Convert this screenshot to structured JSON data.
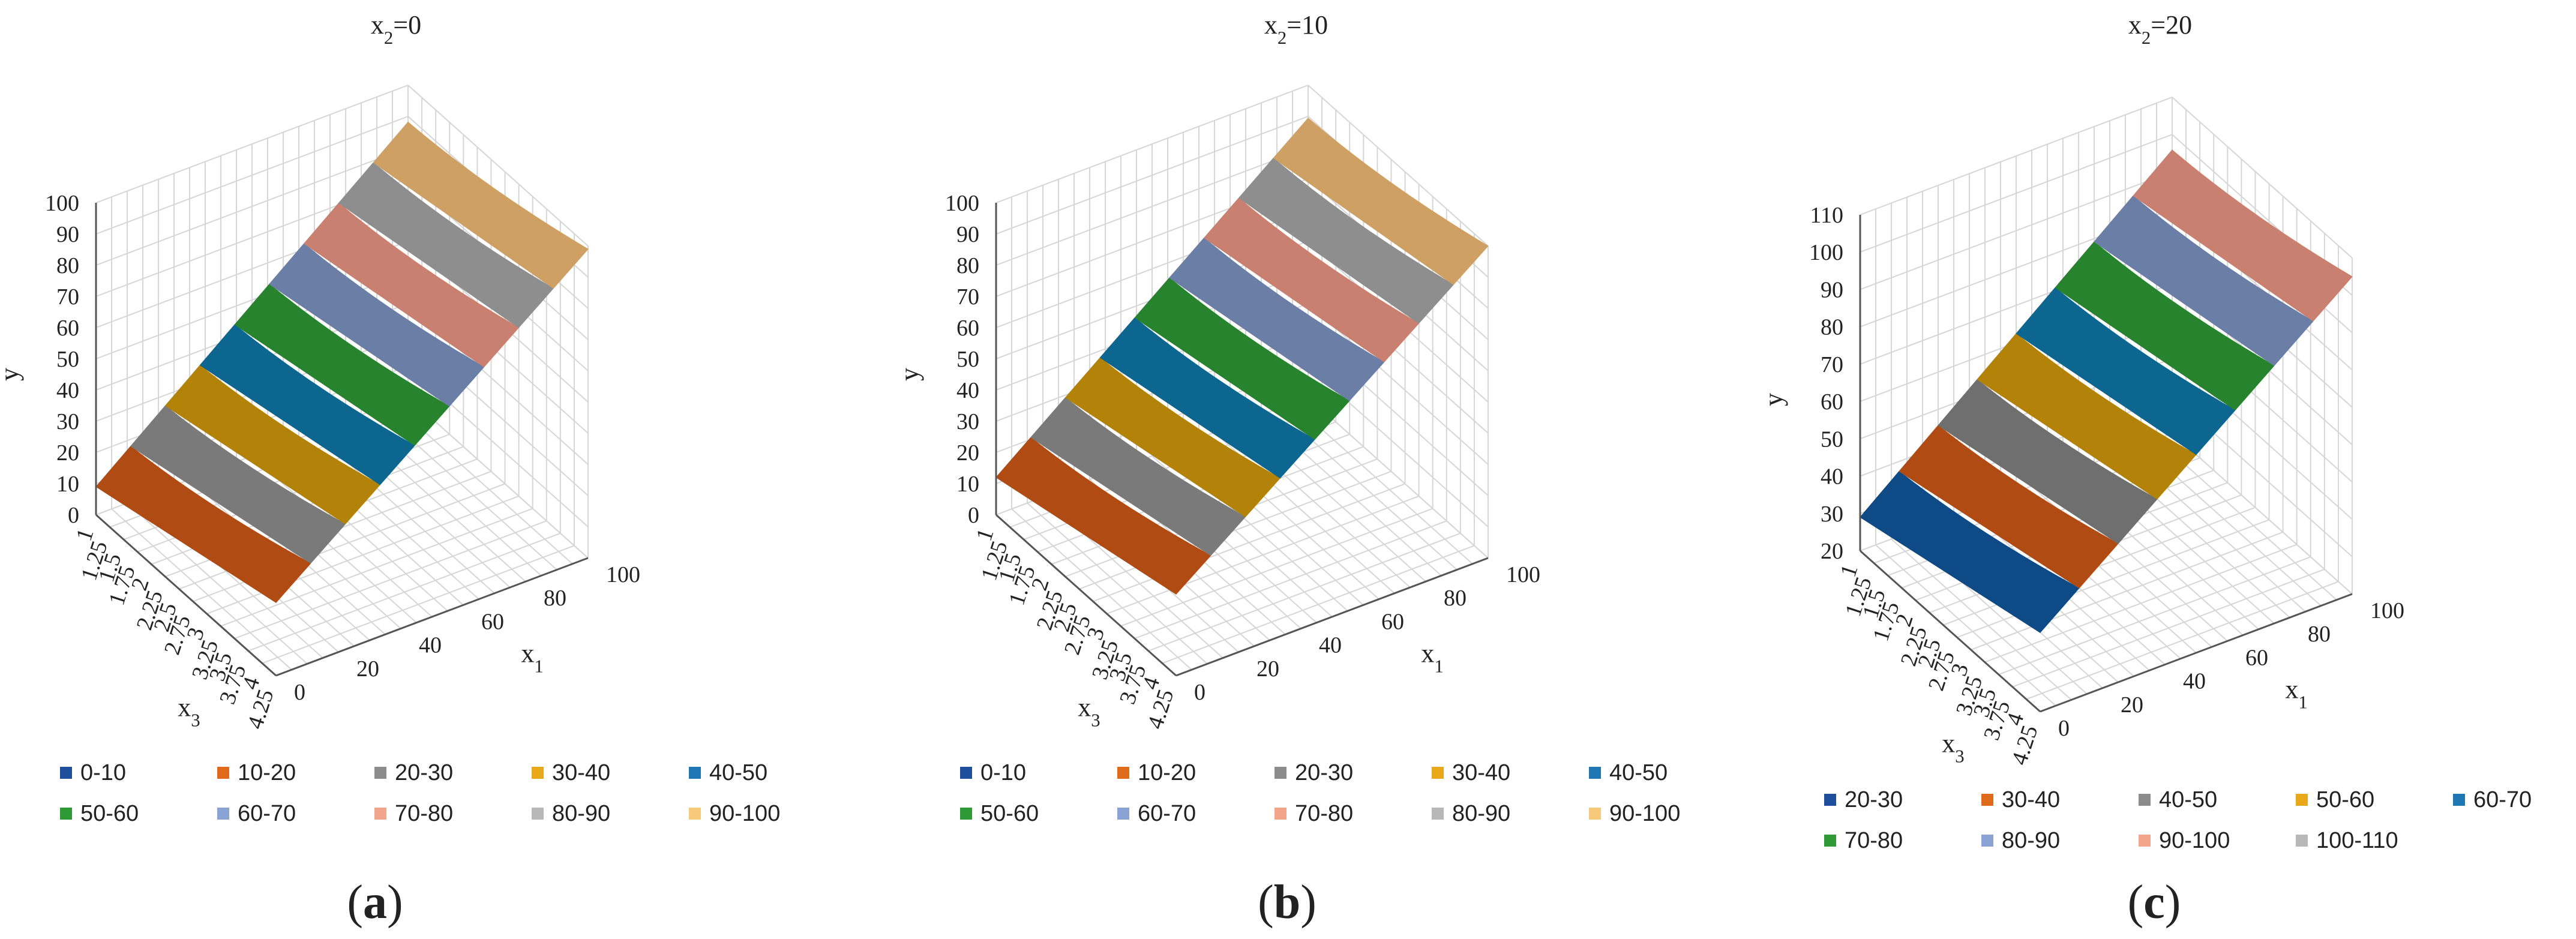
{
  "figure": {
    "letters": [
      "(a)",
      "(b)",
      "(c)"
    ]
  },
  "chart_data": [
    {
      "type": "surface",
      "title": "x2=0",
      "axes": {
        "x1": {
          "label": "x1",
          "ticks": [
            "0",
            "20",
            "40",
            "60",
            "80",
            "100"
          ],
          "range": [
            0,
            100
          ]
        },
        "x3": {
          "label": "x3",
          "ticks": [
            "1",
            "1.25",
            "1.5",
            "1.75",
            "2",
            "2.25",
            "2.5",
            "2.75",
            "3",
            "3.25",
            "3.5",
            "3.75",
            "4",
            "4.25"
          ],
          "range": [
            1,
            4.25
          ]
        },
        "y": {
          "label": "y",
          "ticks": [
            "0",
            "10",
            "20",
            "30",
            "40",
            "50",
            "60",
            "70",
            "80",
            "90",
            "100"
          ],
          "range": [
            0,
            100
          ]
        }
      },
      "legend": {
        "placement": "bottom",
        "items": [
          {
            "label": "0-10",
            "color": "#1f4e9c"
          },
          {
            "label": "10-20",
            "color": "#e06a1b"
          },
          {
            "label": "20-30",
            "color": "#8c8c8c"
          },
          {
            "label": "30-40",
            "color": "#e8a81a"
          },
          {
            "label": "40-50",
            "color": "#1f78b4"
          },
          {
            "label": "50-60",
            "color": "#2e9a35"
          },
          {
            "label": "60-70",
            "color": "#8aa3d4"
          },
          {
            "label": "70-80",
            "color": "#f2a58a"
          },
          {
            "label": "80-90",
            "color": "#b8b8b8"
          },
          {
            "label": "90-100",
            "color": "#f7c97a"
          }
        ]
      },
      "surface": {
        "y_at_x1_0_x3_min": 9,
        "y_at_x1_100_x3_max": 99,
        "bands": [
          {
            "range": "10-20",
            "color": "#b14b14"
          },
          {
            "range": "20-30",
            "color": "#7a7a7a"
          },
          {
            "range": "30-40",
            "color": "#b38208"
          },
          {
            "range": "40-50",
            "color": "#0d6690"
          },
          {
            "range": "50-60",
            "color": "#27832d"
          },
          {
            "range": "60-70",
            "color": "#6b7ea6"
          },
          {
            "range": "70-80",
            "color": "#c98070"
          },
          {
            "range": "80-90",
            "color": "#8e8e8e"
          },
          {
            "range": "90-100",
            "color": "#cfa064"
          }
        ]
      }
    },
    {
      "type": "surface",
      "title": "x2=10",
      "axes": {
        "x1": {
          "label": "x1",
          "ticks": [
            "0",
            "20",
            "40",
            "60",
            "80",
            "100"
          ],
          "range": [
            0,
            100
          ]
        },
        "x3": {
          "label": "x3",
          "ticks": [
            "1",
            "1.25",
            "1.5",
            "1.75",
            "2",
            "2.25",
            "2.5",
            "2.75",
            "3",
            "3.25",
            "3.5",
            "3.75",
            "4",
            "4.25"
          ],
          "range": [
            1,
            4.25
          ]
        },
        "y": {
          "label": "y",
          "ticks": [
            "0",
            "10",
            "20",
            "30",
            "40",
            "50",
            "60",
            "70",
            "80",
            "90",
            "100"
          ],
          "range": [
            0,
            100
          ]
        }
      },
      "legend": {
        "placement": "bottom",
        "items": [
          {
            "label": "0-10",
            "color": "#1f4e9c"
          },
          {
            "label": "10-20",
            "color": "#e06a1b"
          },
          {
            "label": "20-30",
            "color": "#8c8c8c"
          },
          {
            "label": "30-40",
            "color": "#e8a81a"
          },
          {
            "label": "40-50",
            "color": "#1f78b4"
          },
          {
            "label": "50-60",
            "color": "#2e9a35"
          },
          {
            "label": "60-70",
            "color": "#8aa3d4"
          },
          {
            "label": "70-80",
            "color": "#f2a58a"
          },
          {
            "label": "80-90",
            "color": "#b8b8b8"
          },
          {
            "label": "90-100",
            "color": "#f7c97a"
          }
        ]
      },
      "surface": {
        "y_at_x1_0_x3_min": 12,
        "y_at_x1_100_x3_max": 100,
        "bands": [
          {
            "range": "10-20",
            "color": "#b14b14"
          },
          {
            "range": "20-30",
            "color": "#7a7a7a"
          },
          {
            "range": "30-40",
            "color": "#b38208"
          },
          {
            "range": "40-50",
            "color": "#0d6690"
          },
          {
            "range": "50-60",
            "color": "#27832d"
          },
          {
            "range": "60-70",
            "color": "#6b7ea6"
          },
          {
            "range": "70-80",
            "color": "#c98070"
          },
          {
            "range": "80-90",
            "color": "#8e8e8e"
          },
          {
            "range": "90-100",
            "color": "#cfa064"
          }
        ]
      }
    },
    {
      "type": "surface",
      "title": "x2=20",
      "axes": {
        "x1": {
          "label": "x1",
          "ticks": [
            "0",
            "20",
            "40",
            "60",
            "80",
            "100"
          ],
          "range": [
            0,
            100
          ]
        },
        "x3": {
          "label": "x3",
          "ticks": [
            "1",
            "1.25",
            "1.5",
            "1.75",
            "2",
            "2.25",
            "2.5",
            "2.75",
            "3",
            "3.25",
            "3.5",
            "3.75",
            "4",
            "4.25"
          ],
          "range": [
            1,
            4.25
          ]
        },
        "y": {
          "label": "y",
          "ticks": [
            "20",
            "30",
            "40",
            "50",
            "60",
            "70",
            "80",
            "90",
            "100",
            "110"
          ],
          "range": [
            20,
            110
          ]
        }
      },
      "legend": {
        "placement": "bottom",
        "items": [
          {
            "label": "20-30",
            "color": "#1f4e9c"
          },
          {
            "label": "30-40",
            "color": "#e06a1b"
          },
          {
            "label": "40-50",
            "color": "#8c8c8c"
          },
          {
            "label": "50-60",
            "color": "#e8a81a"
          },
          {
            "label": "60-70",
            "color": "#1f78b4"
          },
          {
            "label": "70-80",
            "color": "#2e9a35"
          },
          {
            "label": "80-90",
            "color": "#8aa3d4"
          },
          {
            "label": "90-100",
            "color": "#f2a58a"
          },
          {
            "label": "100-110",
            "color": "#b8b8b8"
          }
        ]
      },
      "surface": {
        "y_at_x1_0_x3_min": 29,
        "y_at_x1_100_x3_max": 105,
        "bands": [
          {
            "range": "20-30",
            "color": "#0d4a86"
          },
          {
            "range": "30-40",
            "color": "#b14b14"
          },
          {
            "range": "40-50",
            "color": "#6f6f6f"
          },
          {
            "range": "50-60",
            "color": "#b38208"
          },
          {
            "range": "60-70",
            "color": "#0d6690"
          },
          {
            "range": "70-80",
            "color": "#27832d"
          },
          {
            "range": "80-90",
            "color": "#6b7ea6"
          },
          {
            "range": "90-100",
            "color": "#c98070"
          }
        ]
      }
    }
  ]
}
